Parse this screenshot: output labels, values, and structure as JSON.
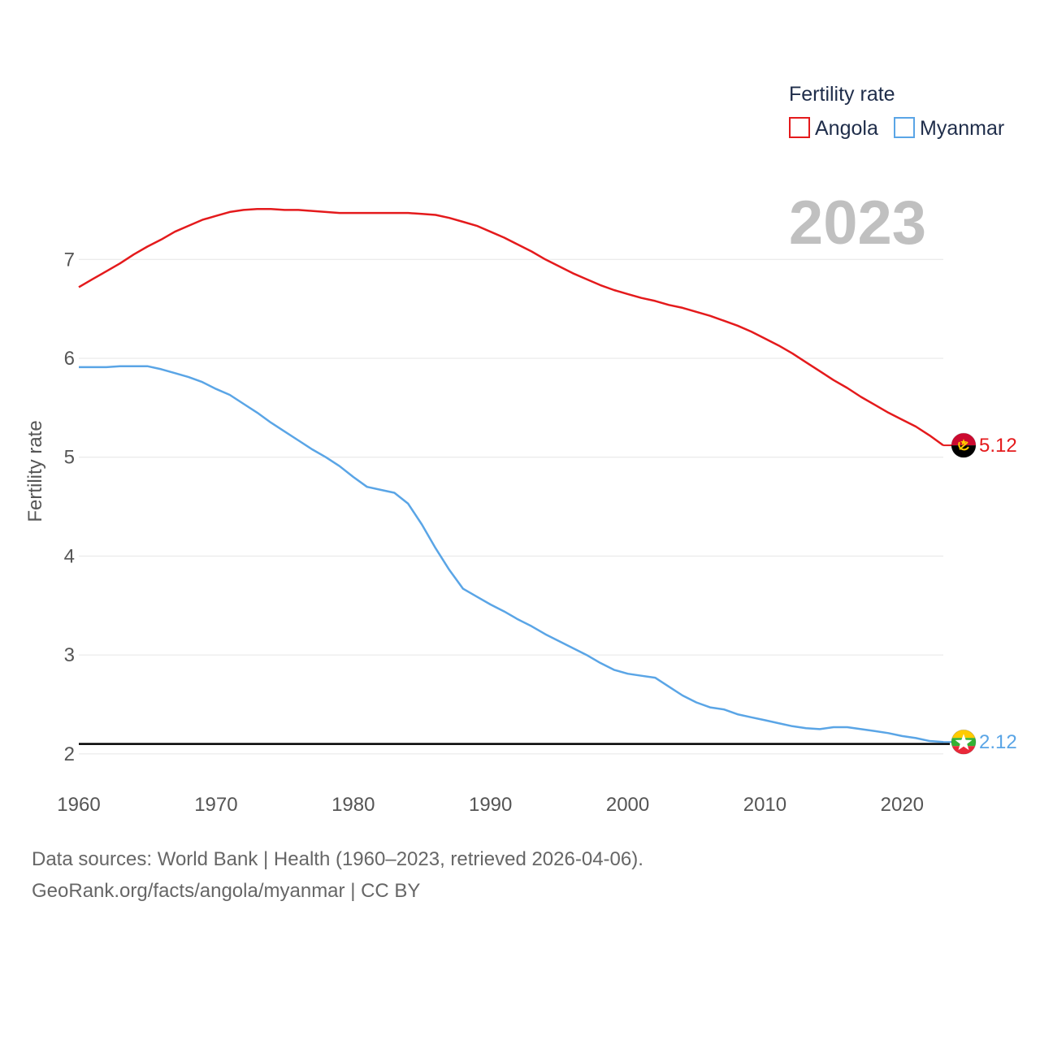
{
  "chart_data": {
    "type": "line",
    "ylabel": "Fertility rate",
    "xlabel": "",
    "current_year": "2023",
    "legend_title": "Fertility rate",
    "legend_position": "top-right",
    "xlim": [
      1960,
      2023
    ],
    "ylim": [
      1.9,
      7.75
    ],
    "x_ticks": [
      1960,
      1970,
      1980,
      1990,
      2000,
      2010,
      2020
    ],
    "y_ticks": [
      2,
      3,
      4,
      5,
      6,
      7
    ],
    "reference_line": {
      "value": 2.1
    },
    "x": [
      1960,
      1961,
      1962,
      1963,
      1964,
      1965,
      1966,
      1967,
      1968,
      1969,
      1970,
      1971,
      1972,
      1973,
      1974,
      1975,
      1976,
      1977,
      1978,
      1979,
      1980,
      1981,
      1982,
      1983,
      1984,
      1985,
      1986,
      1987,
      1988,
      1989,
      1990,
      1991,
      1992,
      1993,
      1994,
      1995,
      1996,
      1997,
      1998,
      1999,
      2000,
      2001,
      2002,
      2003,
      2004,
      2005,
      2006,
      2007,
      2008,
      2009,
      2010,
      2011,
      2012,
      2013,
      2014,
      2015,
      2016,
      2017,
      2018,
      2019,
      2020,
      2021,
      2022,
      2023
    ],
    "series": [
      {
        "name": "Angola",
        "color": "#e41a1c",
        "end_label": "5.12",
        "flag": "angola",
        "values": [
          6.72,
          6.8,
          6.88,
          6.96,
          7.05,
          7.13,
          7.2,
          7.28,
          7.34,
          7.4,
          7.44,
          7.48,
          7.5,
          7.51,
          7.51,
          7.5,
          7.5,
          7.49,
          7.48,
          7.47,
          7.47,
          7.47,
          7.47,
          7.47,
          7.47,
          7.46,
          7.45,
          7.42,
          7.38,
          7.34,
          7.28,
          7.22,
          7.15,
          7.08,
          7.0,
          6.93,
          6.86,
          6.8,
          6.74,
          6.69,
          6.65,
          6.61,
          6.58,
          6.54,
          6.51,
          6.47,
          6.43,
          6.38,
          6.33,
          6.27,
          6.2,
          6.13,
          6.05,
          5.96,
          5.87,
          5.78,
          5.7,
          5.61,
          5.53,
          5.45,
          5.38,
          5.31,
          5.22,
          5.12
        ]
      },
      {
        "name": "Myanmar",
        "color": "#5aa5e6",
        "end_label": "2.12",
        "flag": "myanmar",
        "values": [
          5.91,
          5.91,
          5.91,
          5.92,
          5.92,
          5.92,
          5.89,
          5.85,
          5.81,
          5.76,
          5.69,
          5.63,
          5.54,
          5.45,
          5.35,
          5.26,
          5.17,
          5.08,
          5.0,
          4.91,
          4.8,
          4.7,
          4.67,
          4.64,
          4.53,
          4.32,
          4.08,
          3.86,
          3.67,
          3.59,
          3.51,
          3.44,
          3.36,
          3.29,
          3.21,
          3.14,
          3.07,
          3.0,
          2.92,
          2.85,
          2.81,
          2.79,
          2.77,
          2.68,
          2.59,
          2.52,
          2.47,
          2.45,
          2.4,
          2.37,
          2.34,
          2.31,
          2.28,
          2.26,
          2.25,
          2.27,
          2.27,
          2.25,
          2.23,
          2.21,
          2.18,
          2.16,
          2.13,
          2.12
        ]
      }
    ]
  },
  "footer": {
    "line1": "Data sources: World Bank | Health (1960–2023, retrieved 2026-04-06).",
    "line2": "GeoRank.org/facts/angola/myanmar | CC BY"
  }
}
